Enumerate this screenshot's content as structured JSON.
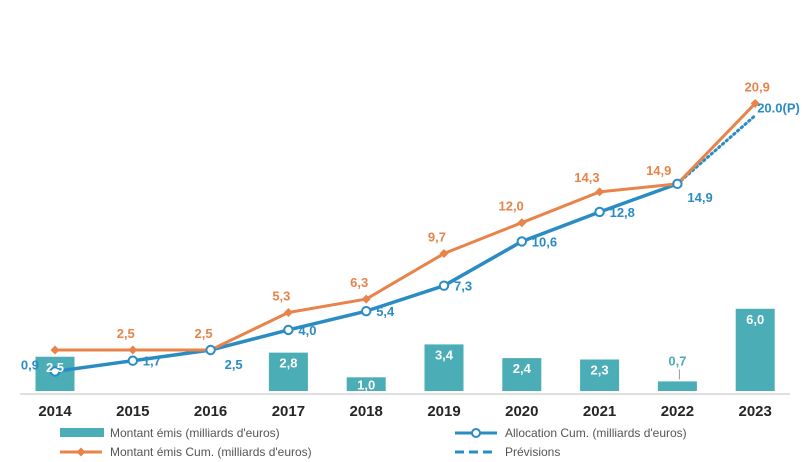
{
  "chart_data": {
    "type": "bar",
    "title": "",
    "xlabel": "",
    "ylabel": "",
    "categories": [
      "2014",
      "2015",
      "2016",
      "2017",
      "2018",
      "2019",
      "2020",
      "2021",
      "2022",
      "2023"
    ],
    "series": [
      {
        "name": "Montant émis (milliards d'euros)",
        "kind": "bar",
        "color": "#4BADB5",
        "values": [
          2.5,
          null,
          null,
          2.8,
          1.0,
          3.4,
          2.4,
          2.3,
          0.7,
          6.0
        ],
        "labels": [
          "2,5",
          "",
          "",
          "2,8",
          "1,0",
          "3,4",
          "2,4",
          "2,3",
          "0,7",
          "6,0"
        ]
      },
      {
        "name": "Montant émis Cum. (milliards d'euros)",
        "kind": "line",
        "color": "#E8834A",
        "values": [
          2.5,
          2.5,
          2.5,
          5.3,
          6.3,
          9.7,
          12.0,
          14.3,
          14.9,
          20.9
        ],
        "labels": [
          "",
          "2,5",
          "2,5",
          "5,3",
          "6,3",
          "9,7",
          "12,0",
          "14,3",
          "14,9",
          "20,9"
        ]
      },
      {
        "name": "Allocation Cum. (milliards d'euros)",
        "kind": "line",
        "color": "#2B8CC4",
        "values": [
          0.9,
          1.7,
          2.5,
          4.0,
          5.4,
          7.3,
          10.6,
          12.8,
          14.9,
          null
        ],
        "labels": [
          "0,9",
          "1,7",
          "2,5",
          "4,0",
          "5,4",
          "7,3",
          "10,6",
          "12,8",
          "14,9",
          ""
        ]
      },
      {
        "name": "Prévisions",
        "kind": "dashed-line",
        "color": "#2B8CC4",
        "values": [
          null,
          null,
          null,
          null,
          null,
          null,
          null,
          null,
          14.9,
          20.0
        ],
        "labels": [
          "",
          "",
          "",
          "",
          "",
          "",
          "",
          "",
          "",
          "20.0(P)"
        ]
      }
    ],
    "legend": [
      {
        "label": "Montant émis (milliards d'euros)",
        "series": 0
      },
      {
        "label": "Allocation Cum. (milliards d'euros)",
        "series": 2
      },
      {
        "label": "Montant émis Cum. (milliards d'euros)",
        "series": 1
      },
      {
        "label": "Prévisions",
        "series": 3
      }
    ],
    "legend_position": "bottom"
  }
}
